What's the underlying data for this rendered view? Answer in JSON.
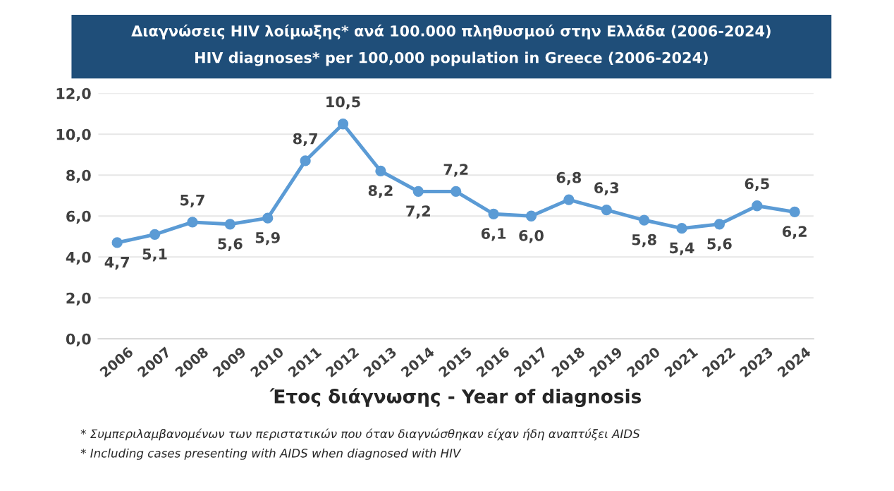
{
  "chart_data": {
    "type": "line",
    "title": "Διαγνώσεις HIV λοίμωξης* ανά 100.000 πληθυσμού στην Ελλάδα (2006-2024)",
    "subtitle": "HIV diagnoses* per 100,000 population in Greece (2006-2024)",
    "xlabel": "Έτος διάγνωσης - Year of diagnosis",
    "categories": [
      "2006",
      "2007",
      "2008",
      "2009",
      "2010",
      "2011",
      "2012",
      "2013",
      "2014",
      "2015",
      "2016",
      "2017",
      "2018",
      "2019",
      "2020",
      "2021",
      "2022",
      "2023",
      "2024"
    ],
    "series": [
      {
        "color": "#5b9bd5",
        "values": [
          4.7,
          5.1,
          5.7,
          5.6,
          5.9,
          8.7,
          10.5,
          8.2,
          7.2,
          7.2,
          6.1,
          6.0,
          6.8,
          6.3,
          5.8,
          5.4,
          5.6,
          6.5,
          6.2
        ],
        "value_labels": [
          "4,7",
          "5,1",
          "5,7",
          "5,6",
          "5,9",
          "8,7",
          "10,5",
          "8,2",
          "7,2",
          "7,2",
          "6,1",
          "6,0",
          "6,8",
          "6,3",
          "5,8",
          "5,4",
          "5,6",
          "6,5",
          "6,2"
        ]
      }
    ],
    "ylim": [
      0,
      12
    ],
    "yticks": [
      {
        "value": 0,
        "label": "0,0"
      },
      {
        "value": 2,
        "label": "2,0"
      },
      {
        "value": 4,
        "label": "4,0"
      },
      {
        "value": 6,
        "label": "6,0"
      },
      {
        "value": 8,
        "label": "8,0"
      },
      {
        "value": 10,
        "label": "10,0"
      },
      {
        "value": 12,
        "label": "12,0"
      }
    ],
    "grid": "y",
    "marker": "circle",
    "line_style": "solid",
    "legend": false,
    "annotations": [
      "* Συμπεριλαμβανομένων των περιστατικών που όταν διαγνώσθηκαν είχαν ήδη αναπτύξει AIDS",
      "* Including cases presenting with AIDS when diagnosed with HIV"
    ]
  }
}
